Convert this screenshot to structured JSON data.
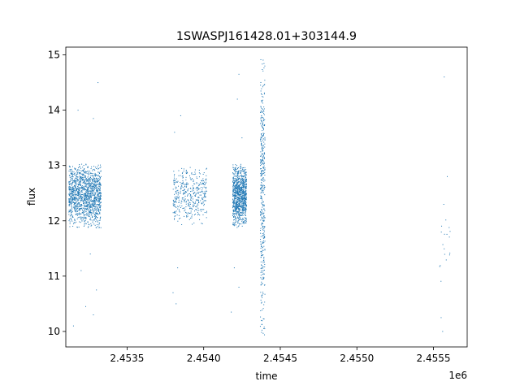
{
  "chart_data": {
    "type": "scatter",
    "title": "1SWASPJ161428.01+303144.9",
    "xlabel": "time",
    "ylabel": "flux",
    "x_offset_label": "1e6",
    "xlim": [
      2453100,
      2455720
    ],
    "ylim": [
      9.72,
      15.14
    ],
    "x_ticks": [
      {
        "value": 2453500,
        "label": "2.4535"
      },
      {
        "value": 2454000,
        "label": "2.4540"
      },
      {
        "value": 2454500,
        "label": "2.4545"
      },
      {
        "value": 2455000,
        "label": "2.4550"
      },
      {
        "value": 2455500,
        "label": "2.4555"
      }
    ],
    "y_ticks": [
      {
        "value": 10,
        "label": "10"
      },
      {
        "value": 11,
        "label": "11"
      },
      {
        "value": 12,
        "label": "12"
      },
      {
        "value": 13,
        "label": "13"
      },
      {
        "value": 14,
        "label": "14"
      },
      {
        "value": 15,
        "label": "15"
      }
    ],
    "grid": false,
    "marker_color": "#1f77b4",
    "clusters": [
      {
        "x_start": 2453120,
        "x_end": 2453330,
        "y_center": 12.45,
        "y_spread": 0.55,
        "n_points": 1400,
        "outliers": [
          [
            2453180,
            14.0
          ],
          [
            2453200,
            11.1
          ],
          [
            2453260,
            11.4
          ],
          [
            2453300,
            10.75
          ],
          [
            2453150,
            10.1
          ],
          [
            2453280,
            13.85
          ],
          [
            2453310,
            14.5
          ],
          [
            2453230,
            10.45
          ],
          [
            2453280,
            10.3
          ]
        ]
      },
      {
        "x_start": 2453800,
        "x_end": 2454020,
        "y_center": 12.45,
        "y_spread": 0.5,
        "n_points": 420,
        "outliers": [
          [
            2453810,
            13.6
          ],
          [
            2453850,
            13.9
          ],
          [
            2453830,
            11.15
          ],
          [
            2453800,
            10.7
          ],
          [
            2453820,
            10.5
          ]
        ]
      },
      {
        "x_start": 2454190,
        "x_end": 2454280,
        "y_center": 12.45,
        "y_spread": 0.55,
        "n_points": 1000,
        "outliers": [
          [
            2454230,
            14.65
          ],
          [
            2454220,
            14.2
          ],
          [
            2454200,
            11.15
          ],
          [
            2454230,
            10.8
          ],
          [
            2454180,
            10.35
          ],
          [
            2454250,
            13.5
          ]
        ]
      },
      {
        "x_start": 2454370,
        "x_end": 2454400,
        "y_center": 12.45,
        "y_spread": 2.4,
        "n_points": 420,
        "outliers": []
      },
      {
        "x_start": 2455540,
        "x_end": 2455610,
        "y_center": 11.5,
        "y_spread": 0.9,
        "n_points": 18,
        "outliers": [
          [
            2455570,
            14.6
          ],
          [
            2455590,
            12.8
          ],
          [
            2455550,
            10.25
          ],
          [
            2455560,
            10.0
          ]
        ]
      }
    ]
  }
}
